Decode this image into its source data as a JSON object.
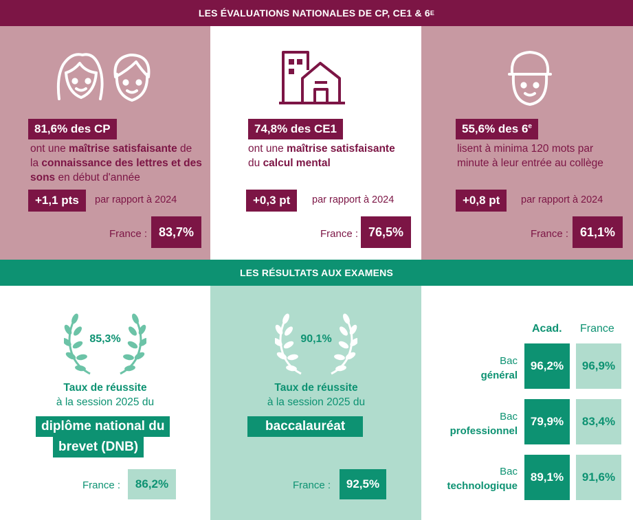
{
  "top_banner": {
    "title": "LES ÉVALUATIONS NATIONALES DE CP, CE1 & 6",
    "title_sup": "E"
  },
  "evaluations": [
    {
      "headline": "81,6% des CP",
      "desc_parts": [
        "ont une ",
        "maîtrise satisfaisante",
        " de la ",
        "connaissance des lettres et des sons",
        " en début d'année"
      ],
      "delta": "+1,1 pts",
      "delta_note": "par rapport à 2024",
      "france_label": "France :",
      "france_value": "83,7%",
      "icon": "children-faces-icon"
    },
    {
      "headline": "74,8% des CE1",
      "desc_parts": [
        "ont une ",
        "maîtrise satisfaisante",
        " du ",
        "calcul mental"
      ],
      "delta": "+0,3 pt",
      "delta_note": "par rapport à 2024",
      "france_label": "France :",
      "france_value": "76,5%",
      "icon": "school-building-icon"
    },
    {
      "headline": "55,6% des 6",
      "headline_sup": "e",
      "desc": "lisent à minima 120 mots par minute à leur entrée au collège",
      "delta": "+0,8 pt",
      "delta_note": "par rapport à 2024",
      "france_label": "France :",
      "france_value": "61,1%",
      "icon": "student-cap-icon"
    }
  ],
  "mid_banner": {
    "title": "LES RÉSULTATS AUX EXAMENS"
  },
  "exams": [
    {
      "rate": "85,3%",
      "desc_line1": "Taux de réussite",
      "desc_line2": "à la session 2025 du",
      "name_line1": "diplôme national du",
      "name_line2": "brevet (DNB)",
      "france_label": "France :",
      "france_value": "86,2%",
      "icon": "laurel-wreath-icon"
    },
    {
      "rate": "90,1%",
      "desc_line1": "Taux de réussite",
      "desc_line2": "à la session 2025 du",
      "name_line1": "baccalauréat",
      "france_label": "France :",
      "france_value": "92,5%",
      "icon": "laurel-wreath-icon"
    }
  ],
  "bac_table": {
    "col_acad": "Acad.",
    "col_france": "France",
    "rows": [
      {
        "label1": "Bac",
        "label2": "général",
        "acad": "96,2%",
        "france": "96,9%"
      },
      {
        "label1": "Bac",
        "label2": "professionnel",
        "acad": "79,9%",
        "france": "83,4%"
      },
      {
        "label1": "Bac",
        "label2": "technologique",
        "acad": "89,1%",
        "france": "91,6%"
      }
    ]
  },
  "colors": {
    "plum": "#7c1545",
    "pink": "#c799a2",
    "green": "#0d9272",
    "mint": "#b0dccd"
  }
}
